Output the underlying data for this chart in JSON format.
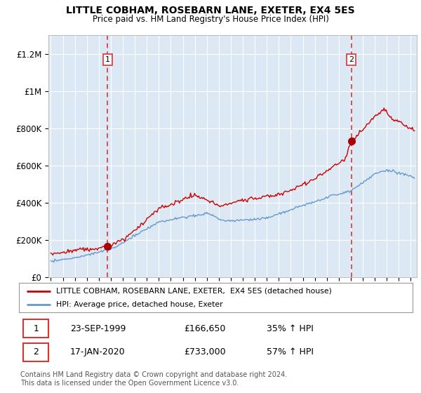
{
  "title": "LITTLE COBHAM, ROSEBARN LANE, EXETER, EX4 5ES",
  "subtitle": "Price paid vs. HM Land Registry's House Price Index (HPI)",
  "plot_bg_color": "#dce9f5",
  "grid_color": "#ffffff",
  "ylim": [
    0,
    1300000
  ],
  "yticks": [
    0,
    200000,
    400000,
    600000,
    800000,
    1000000,
    1200000
  ],
  "ytick_labels": [
    "£0",
    "£200K",
    "£400K",
    "£600K",
    "£800K",
    "£1M",
    "£1.2M"
  ],
  "sale1_year": 1999.73,
  "sale1_price": 166650,
  "sale1_label": "1",
  "sale1_date": "23-SEP-1999",
  "sale1_price_str": "£166,650",
  "sale1_pct": "35% ↑ HPI",
  "sale2_year": 2020.04,
  "sale2_price": 733000,
  "sale2_label": "2",
  "sale2_date": "17-JAN-2020",
  "sale2_price_str": "£733,000",
  "sale2_pct": "57% ↑ HPI",
  "red_line_color": "#cc0000",
  "blue_line_color": "#6699cc",
  "dashed_line_color": "#dd3333",
  "marker_color": "#aa0000",
  "legend_label_red": "LITTLE COBHAM, ROSEBARN LANE, EXETER,  EX4 5ES (detached house)",
  "legend_label_blue": "HPI: Average price, detached house, Exeter",
  "footnote": "Contains HM Land Registry data © Crown copyright and database right 2024.\nThis data is licensed under the Open Government Licence v3.0.",
  "xmin": 1994.8,
  "xmax": 2025.5,
  "xtick_years": [
    1995,
    1996,
    1997,
    1998,
    1999,
    2000,
    2001,
    2002,
    2003,
    2004,
    2005,
    2006,
    2007,
    2008,
    2009,
    2010,
    2011,
    2012,
    2013,
    2014,
    2015,
    2016,
    2017,
    2018,
    2019,
    2020,
    2021,
    2022,
    2023,
    2024,
    2025
  ]
}
